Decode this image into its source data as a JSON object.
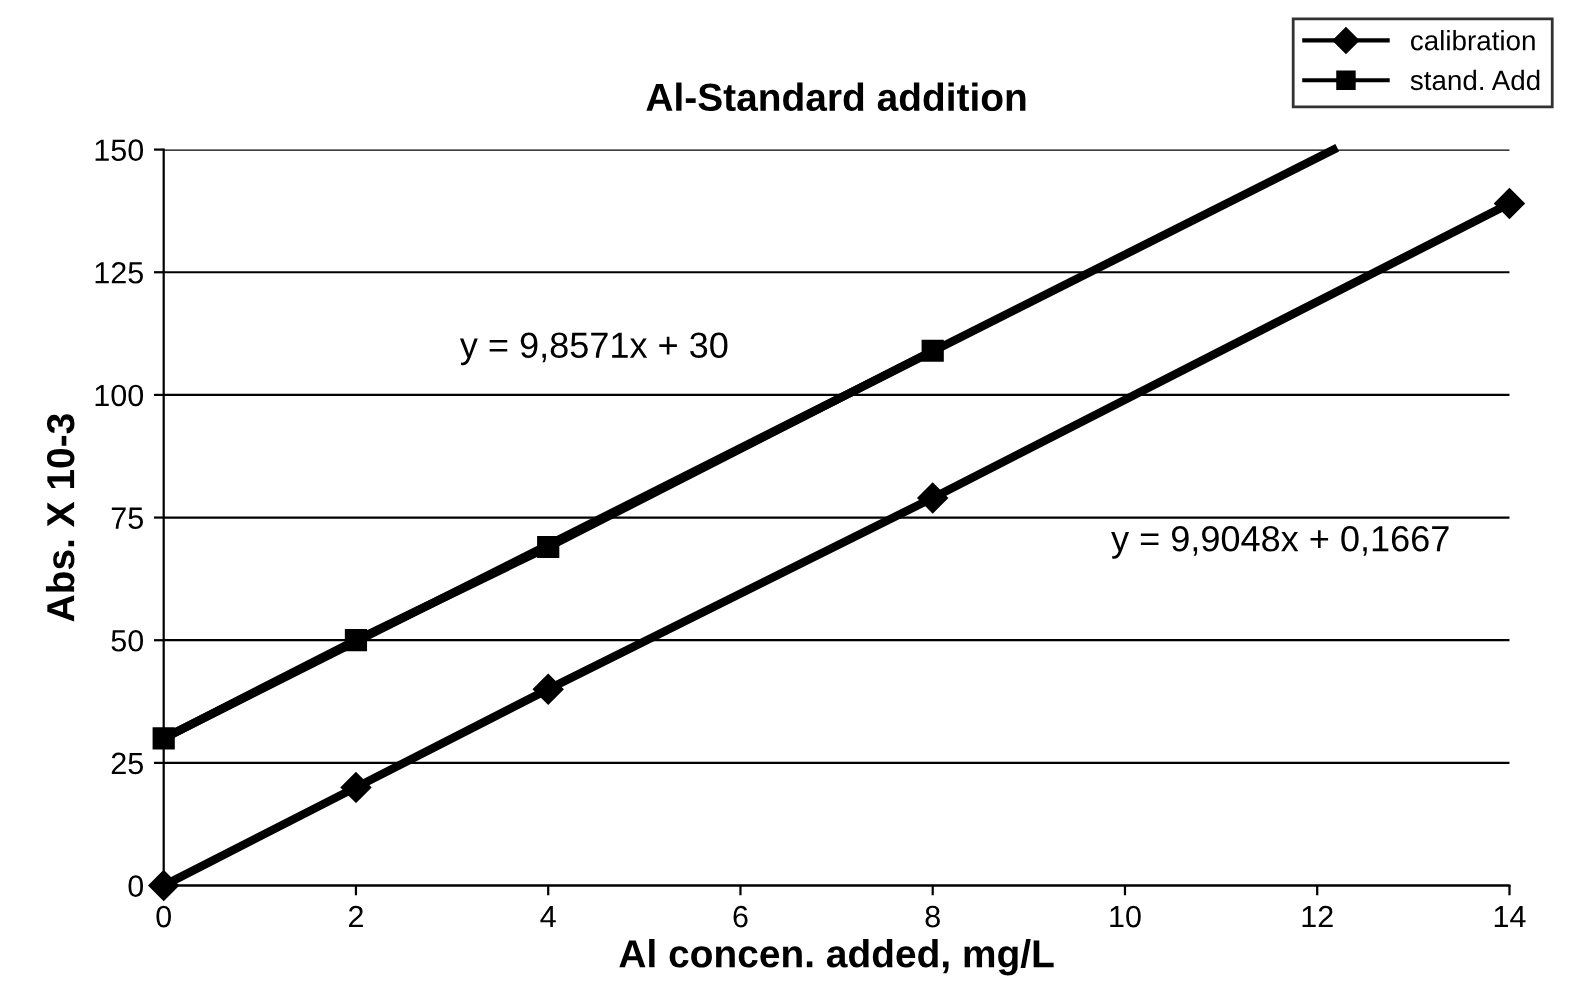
{
  "chart_data": {
    "type": "line",
    "title": "Al-Standard addition",
    "xlabel": "Al concen. added, mg/L",
    "ylabel": "Abs. X 10-3",
    "xlim": [
      0,
      14
    ],
    "xticks": [
      0,
      2,
      4,
      6,
      8,
      10,
      12,
      14
    ],
    "ylim": [
      0,
      150
    ],
    "yticks": [
      0,
      25,
      50,
      75,
      100,
      125,
      150
    ],
    "grid": "y",
    "legend": "top right",
    "line_style": "solid",
    "series": [
      {
        "name": "calibration",
        "color": "#000000",
        "marker": "diamond",
        "x": [
          0,
          2,
          4,
          8,
          14
        ],
        "values": [
          0,
          20,
          40,
          79,
          139
        ]
      },
      {
        "name": "stand. Add",
        "color": "#000000",
        "marker": "square",
        "x": [
          0,
          2,
          4,
          8
        ],
        "values": [
          30,
          50,
          69,
          109
        ]
      },
      {
        "color": "#000000",
        "marker": "none",
        "x": [
          0,
          12.17
        ],
        "values": [
          30,
          150
        ]
      }
    ],
    "annotations": [
      "y = 9,8571x + 30",
      "y = 9,9048x + 0,1667"
    ]
  }
}
